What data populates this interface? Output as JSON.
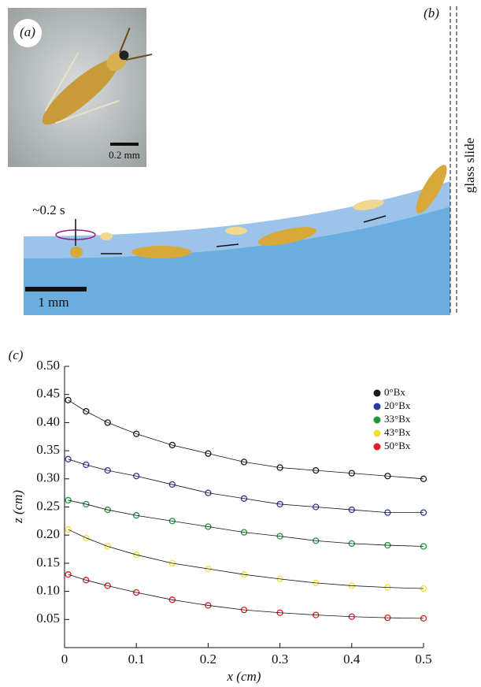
{
  "panels": {
    "a": "(a)",
    "b": "(b)",
    "c": "(c)"
  },
  "photo": {
    "scale_bar": "0.2 mm"
  },
  "diagram": {
    "time": "~0.2 s",
    "scale_bar": "1 mm",
    "wall": "glass slide"
  },
  "chart_data": {
    "type": "scatter",
    "x_label": "x (cm)",
    "y_label": "z (cm)",
    "xlim": [
      0,
      0.5
    ],
    "ylim": [
      0,
      0.5
    ],
    "xticks": [
      0,
      0.1,
      0.2,
      0.3,
      0.4,
      0.5
    ],
    "yticks": [
      0.05,
      {
        "value": 0.1,
        "label": "0.10"
      },
      0.15,
      {
        "value": 0.2,
        "label": "0.20"
      },
      0.25,
      {
        "value": 0.3,
        "label": "0.30"
      },
      0.35,
      {
        "value": 0.4,
        "label": "0.40"
      },
      0.45,
      {
        "value": 0.5,
        "label": "0.50"
      }
    ],
    "legend": "upper right",
    "x": [
      0.005,
      0.03,
      0.06,
      0.1,
      0.15,
      0.2,
      0.25,
      0.3,
      0.35,
      0.4,
      0.45,
      0.5
    ],
    "series": [
      {
        "name": "0°Bx",
        "color": "#1a1a1a",
        "values": [
          0.44,
          0.42,
          0.4,
          0.38,
          0.36,
          0.345,
          0.33,
          0.32,
          0.315,
          0.31,
          0.305,
          0.3
        ]
      },
      {
        "name": "20°Bx",
        "color": "#2e3a9a",
        "values": [
          0.335,
          0.325,
          0.315,
          0.305,
          0.29,
          0.275,
          0.265,
          0.255,
          0.25,
          0.245,
          0.24,
          0.24
        ]
      },
      {
        "name": "33°Bx",
        "color": "#1a9a3a",
        "values": [
          0.262,
          0.255,
          0.245,
          0.235,
          0.225,
          0.215,
          0.205,
          0.198,
          0.19,
          0.185,
          0.182,
          0.18
        ]
      },
      {
        "name": "43°Bx",
        "color": "#f2e030",
        "values": [
          0.21,
          0.195,
          0.18,
          0.165,
          0.15,
          0.14,
          0.13,
          0.122,
          0.115,
          0.11,
          0.107,
          0.105
        ]
      },
      {
        "name": "50°Bx",
        "color": "#e02020",
        "values": [
          0.13,
          0.12,
          0.11,
          0.098,
          0.085,
          0.075,
          0.067,
          0.062,
          0.058,
          0.055,
          0.053,
          0.052
        ]
      }
    ]
  }
}
